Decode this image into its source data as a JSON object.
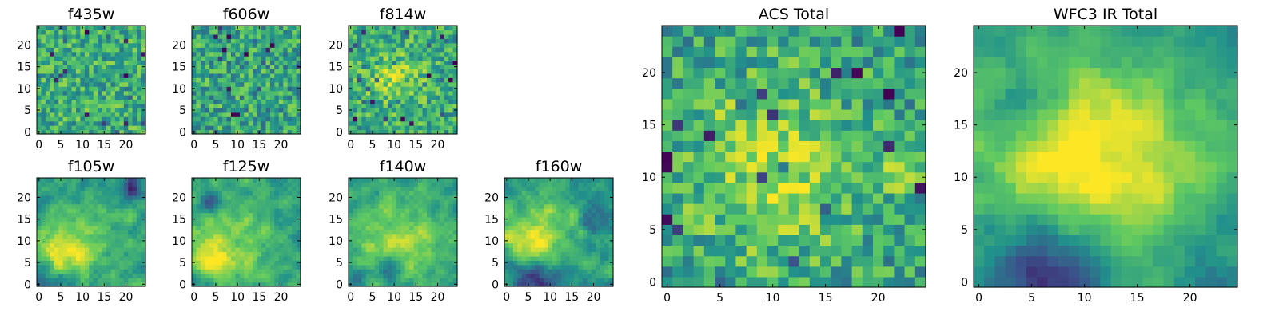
{
  "colormap": {
    "name": "viridis",
    "stops": [
      "#440154",
      "#3b528b",
      "#21918c",
      "#5ec962",
      "#fde725"
    ]
  },
  "chart_data": [
    {
      "type": "heatmap",
      "title": "f435w",
      "grid": "25x25",
      "xlim": [
        0,
        24
      ],
      "ylim": [
        0,
        24
      ],
      "xticks": [
        "0",
        "5",
        "10",
        "15",
        "20"
      ],
      "yticks": [
        "0",
        "5",
        "10",
        "15",
        "20"
      ],
      "values_description": "noisy field, mostly 0.55-0.85 normalized",
      "pattern": "noise",
      "base": 0.62,
      "hotspots": [],
      "coldspots": [],
      "noise": 0.22
    },
    {
      "type": "heatmap",
      "title": "f606w",
      "grid": "25x25",
      "xlim": [
        0,
        24
      ],
      "ylim": [
        0,
        24
      ],
      "xticks": [
        "0",
        "5",
        "10",
        "15",
        "20"
      ],
      "yticks": [
        "0",
        "5",
        "10",
        "15",
        "20"
      ],
      "pattern": "noise",
      "base": 0.58,
      "hotspots": [],
      "coldspots": [],
      "noise": 0.24
    },
    {
      "type": "heatmap",
      "title": "f814w",
      "grid": "25x25",
      "xlim": [
        0,
        24
      ],
      "ylim": [
        0,
        24
      ],
      "xticks": [
        "0",
        "5",
        "10",
        "15",
        "20"
      ],
      "yticks": [
        "0",
        "5",
        "10",
        "15",
        "20"
      ],
      "pattern": "noise",
      "base": 0.6,
      "hotspots": [
        {
          "x": 10,
          "y": 12,
          "r": 5,
          "amp": 0.2
        }
      ],
      "coldspots": [],
      "noise": 0.22
    },
    {
      "type": "heatmap",
      "title": "f105w",
      "grid": "25x25",
      "xlim": [
        0,
        24
      ],
      "ylim": [
        0,
        24
      ],
      "xticks": [
        "0",
        "5",
        "10",
        "15",
        "20"
      ],
      "yticks": [
        "0",
        "5",
        "10",
        "15",
        "20"
      ],
      "pattern": "smooth",
      "base": 0.55,
      "hotspots": [
        {
          "x": 5,
          "y": 7,
          "r": 4,
          "amp": 0.4
        },
        {
          "x": 14,
          "y": 12,
          "r": 6,
          "amp": 0.18
        }
      ],
      "coldspots": [
        {
          "x": 21,
          "y": 22,
          "r": 2,
          "amp": 0.4
        },
        {
          "x": 3,
          "y": 1,
          "r": 3,
          "amp": 0.25
        }
      ],
      "noise": 0.14
    },
    {
      "type": "heatmap",
      "title": "f125w",
      "grid": "25x25",
      "xlim": [
        0,
        24
      ],
      "ylim": [
        0,
        24
      ],
      "xticks": [
        "0",
        "5",
        "10",
        "15",
        "20"
      ],
      "yticks": [
        "0",
        "5",
        "10",
        "15",
        "20"
      ],
      "pattern": "smooth",
      "base": 0.55,
      "hotspots": [
        {
          "x": 8,
          "y": 10,
          "r": 7,
          "amp": 0.3
        },
        {
          "x": 3,
          "y": 5,
          "r": 3,
          "amp": 0.3
        }
      ],
      "coldspots": [
        {
          "x": 4,
          "y": 19,
          "r": 2,
          "amp": 0.35
        },
        {
          "x": 2,
          "y": 1,
          "r": 2,
          "amp": 0.2
        }
      ],
      "noise": 0.13
    },
    {
      "type": "heatmap",
      "title": "f140w",
      "grid": "25x25",
      "xlim": [
        0,
        24
      ],
      "ylim": [
        0,
        24
      ],
      "xticks": [
        "0",
        "5",
        "10",
        "15",
        "20"
      ],
      "yticks": [
        "0",
        "5",
        "10",
        "15",
        "20"
      ],
      "pattern": "smooth",
      "base": 0.57,
      "hotspots": [
        {
          "x": 11,
          "y": 10,
          "r": 7,
          "amp": 0.28
        }
      ],
      "coldspots": [
        {
          "x": 9,
          "y": 3,
          "r": 2,
          "amp": 0.35
        },
        {
          "x": 1,
          "y": 2,
          "r": 2,
          "amp": 0.25
        }
      ],
      "noise": 0.13
    },
    {
      "type": "heatmap",
      "title": "f160w",
      "grid": "25x25",
      "xlim": [
        0,
        24
      ],
      "ylim": [
        0,
        24
      ],
      "xticks": [
        "0",
        "5",
        "10",
        "15",
        "20"
      ],
      "yticks": [
        "0",
        "5",
        "10",
        "15",
        "20"
      ],
      "pattern": "smooth",
      "base": 0.55,
      "hotspots": [
        {
          "x": 7,
          "y": 12,
          "r": 6,
          "amp": 0.3
        },
        {
          "x": 5,
          "y": 8,
          "r": 3,
          "amp": 0.2
        }
      ],
      "coldspots": [
        {
          "x": 6,
          "y": 0,
          "r": 4,
          "amp": 0.45
        },
        {
          "x": 20,
          "y": 16,
          "r": 3,
          "amp": 0.15
        }
      ],
      "noise": 0.14
    },
    {
      "type": "heatmap",
      "title": "ACS Total",
      "grid": "25x25",
      "xlim": [
        0,
        24
      ],
      "ylim": [
        0,
        24
      ],
      "xticks": [
        "0",
        "5",
        "10",
        "15",
        "20"
      ],
      "yticks": [
        "0",
        "5",
        "10",
        "15",
        "20"
      ],
      "pattern": "noise",
      "base": 0.56,
      "hotspots": [
        {
          "x": 10,
          "y": 11,
          "r": 6,
          "amp": 0.3
        },
        {
          "x": 22,
          "y": 11,
          "r": 2,
          "amp": 0.2
        }
      ],
      "coldspots": [],
      "noise": 0.22
    },
    {
      "type": "heatmap",
      "title": "WFC3 IR Total",
      "grid": "25x25",
      "xlim": [
        0,
        24
      ],
      "ylim": [
        0,
        24
      ],
      "xticks": [
        "0",
        "5",
        "10",
        "15",
        "20"
      ],
      "yticks": [
        "0",
        "5",
        "10",
        "15",
        "20"
      ],
      "pattern": "smooth",
      "base": 0.55,
      "hotspots": [
        {
          "x": 8,
          "y": 11,
          "r": 7,
          "amp": 0.35
        },
        {
          "x": 15,
          "y": 12,
          "r": 6,
          "amp": 0.2
        }
      ],
      "coldspots": [
        {
          "x": 6,
          "y": 1,
          "r": 4,
          "amp": 0.5
        },
        {
          "x": 4,
          "y": 17,
          "r": 2,
          "amp": 0.2
        },
        {
          "x": 22,
          "y": 3,
          "r": 3,
          "amp": 0.15
        }
      ],
      "noise": 0.1
    }
  ]
}
